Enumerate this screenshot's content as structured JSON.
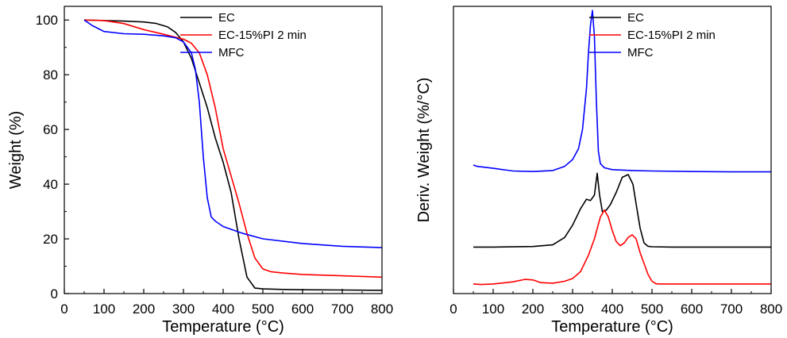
{
  "chart_data": [
    {
      "type": "line",
      "title": "",
      "xlabel": "Temperature (°C)",
      "ylabel": "Weight (%)",
      "xlim": [
        0,
        800
      ],
      "ylim": [
        0,
        105
      ],
      "xticks": [
        0,
        100,
        200,
        300,
        400,
        500,
        600,
        700,
        800
      ],
      "yticks": [
        0,
        20,
        40,
        60,
        80,
        100
      ],
      "grid": false,
      "legend_position": "top-right",
      "series": [
        {
          "name": "EC",
          "color": "#000000",
          "x": [
            50,
            100,
            150,
            200,
            230,
            260,
            280,
            300,
            320,
            340,
            360,
            380,
            400,
            420,
            440,
            460,
            480,
            500,
            550,
            600,
            700,
            800
          ],
          "y": [
            100,
            99.8,
            99.6,
            99.3,
            98.8,
            97.5,
            95.5,
            92,
            86,
            77,
            68,
            57,
            48,
            37,
            20,
            6,
            2,
            1.7,
            1.5,
            1.4,
            1.3,
            1.2
          ]
        },
        {
          "name": "EC-15%PI 2 min",
          "color": "#ff0000",
          "x": [
            50,
            100,
            150,
            200,
            250,
            300,
            320,
            340,
            360,
            380,
            400,
            420,
            440,
            460,
            480,
            500,
            520,
            550,
            600,
            700,
            800
          ],
          "y": [
            100,
            99.8,
            98.7,
            96.5,
            94.8,
            93,
            91.5,
            88,
            80,
            68,
            53,
            43,
            33,
            22,
            13,
            9,
            8,
            7.5,
            7,
            6.5,
            6
          ]
        },
        {
          "name": "MFC",
          "color": "#0000ff",
          "x": [
            50,
            70,
            100,
            150,
            200,
            250,
            280,
            300,
            320,
            330,
            340,
            350,
            360,
            370,
            380,
            400,
            450,
            500,
            600,
            700,
            800
          ],
          "y": [
            100,
            98,
            95.8,
            95,
            94.8,
            94.2,
            93.5,
            92,
            88,
            82,
            70,
            50,
            35,
            28,
            26.5,
            24.5,
            22,
            20,
            18.3,
            17.3,
            16.8
          ]
        }
      ]
    },
    {
      "type": "line",
      "title": "",
      "xlabel": "Temperature (°C)",
      "ylabel": "Deriv. Weight (%/°C)",
      "xlim": [
        0,
        800
      ],
      "ylim": [
        0,
        105
      ],
      "xticks": [
        0,
        100,
        200,
        300,
        400,
        500,
        600,
        700,
        800
      ],
      "yticks": [],
      "grid": false,
      "legend_position": "top-right",
      "series": [
        {
          "name": "EC",
          "color": "#000000",
          "x": [
            50,
            100,
            200,
            250,
            280,
            300,
            320,
            335,
            345,
            355,
            362,
            368,
            375,
            385,
            395,
            410,
            425,
            440,
            452,
            462,
            470,
            480,
            490,
            500,
            550,
            600,
            700,
            800
          ],
          "y": [
            17,
            17,
            17.2,
            17.8,
            20.5,
            25,
            31,
            34.5,
            34,
            36,
            44,
            36,
            30,
            30.5,
            32.5,
            37,
            42.5,
            43.5,
            40,
            31,
            24,
            18.5,
            17.3,
            17.1,
            17,
            17,
            17,
            17
          ]
        },
        {
          "name": "EC-15%PI 2 min",
          "color": "#ff0000",
          "x": [
            50,
            70,
            100,
            150,
            180,
            200,
            220,
            250,
            280,
            300,
            320,
            340,
            355,
            370,
            380,
            390,
            400,
            410,
            420,
            430,
            440,
            450,
            460,
            470,
            480,
            490,
            500,
            510,
            520,
            550,
            600,
            700,
            800
          ],
          "y": [
            3.5,
            3.3,
            3.5,
            4.3,
            5.2,
            5,
            4,
            3.8,
            4.5,
            5.5,
            8,
            14,
            20,
            28,
            30.5,
            28,
            23,
            19,
            17.5,
            18.5,
            20.5,
            21.5,
            20,
            15,
            11,
            7,
            4.5,
            3.6,
            3.5,
            3.5,
            3.5,
            3.5,
            3.5
          ]
        },
        {
          "name": "MFC",
          "color": "#0000ff",
          "x": [
            50,
            60,
            100,
            150,
            200,
            250,
            280,
            300,
            315,
            325,
            335,
            340,
            345,
            350,
            355,
            360,
            365,
            370,
            380,
            400,
            450,
            500,
            600,
            700,
            800
          ],
          "y": [
            47,
            46.5,
            45.8,
            44.8,
            44.6,
            45,
            46.5,
            49,
            53,
            60,
            75,
            88,
            98,
            103.5,
            94,
            70,
            52,
            47.5,
            46,
            45.3,
            45,
            44.8,
            44.6,
            44.5,
            44.5
          ]
        }
      ]
    }
  ]
}
